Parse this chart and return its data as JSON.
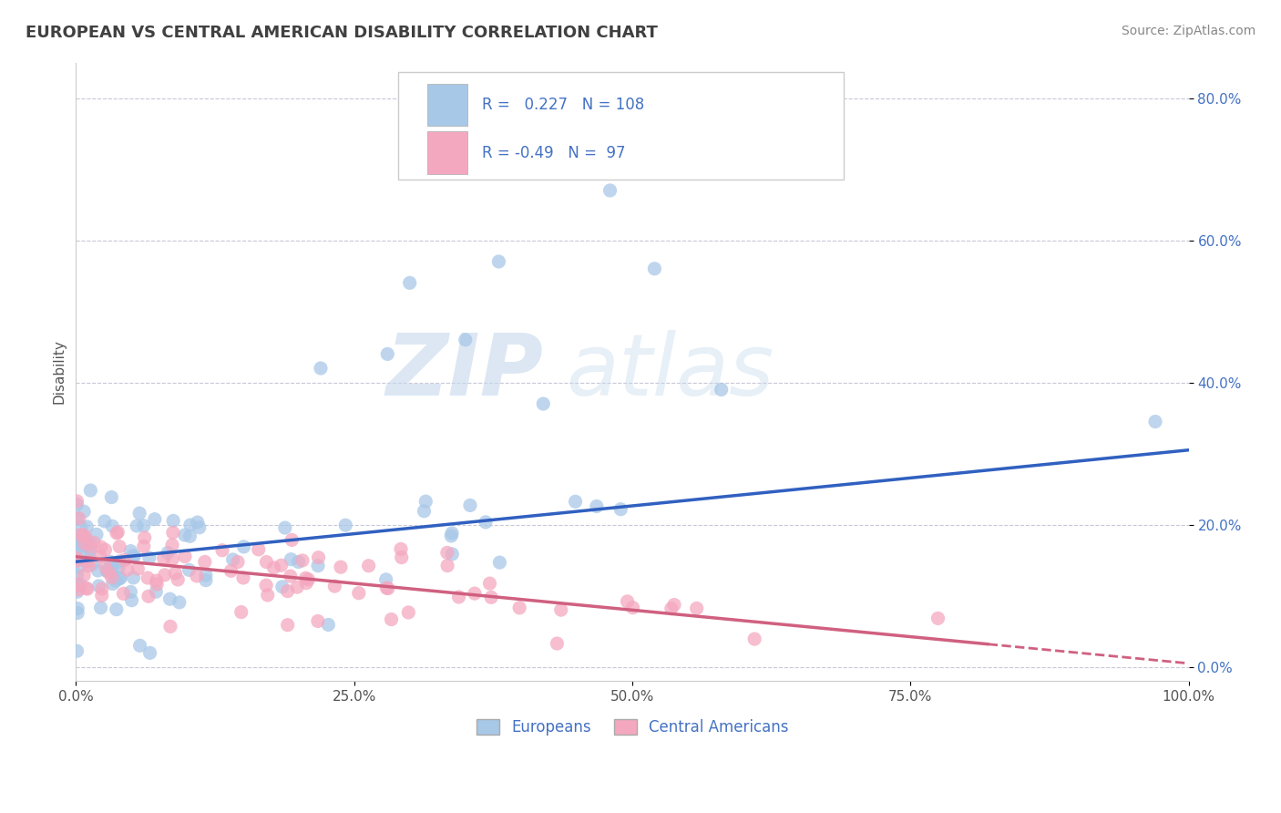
{
  "title": "EUROPEAN VS CENTRAL AMERICAN DISABILITY CORRELATION CHART",
  "source": "Source: ZipAtlas.com",
  "ylabel": "Disability",
  "xlim": [
    0.0,
    1.0
  ],
  "ylim": [
    -0.02,
    0.85
  ],
  "x_ticks": [
    0.0,
    0.25,
    0.5,
    0.75,
    1.0
  ],
  "x_tick_labels": [
    "0.0%",
    "25.0%",
    "50.0%",
    "75.0%",
    "100.0%"
  ],
  "y_ticks": [
    0.0,
    0.2,
    0.4,
    0.6,
    0.8
  ],
  "y_tick_labels": [
    "0.0%",
    "20.0%",
    "40.0%",
    "60.0%",
    "80.0%"
  ],
  "european_color": "#a8c8e8",
  "central_american_color": "#f4a8c0",
  "european_line_color": "#3060c0",
  "central_american_line_color": "#d06080",
  "R_european": 0.227,
  "N_european": 108,
  "R_central": -0.49,
  "N_central": 97,
  "watermark_zip": "ZIP",
  "watermark_atlas": "atlas",
  "background_color": "#ffffff",
  "grid_color": "#c8c8d8",
  "legend_text_color": "#4472c4",
  "title_color": "#404040",
  "source_color": "#888888",
  "legend_european_label": "Europeans",
  "legend_central_label": "Central Americans",
  "eu_line_x0": 0.0,
  "eu_line_y0": 0.148,
  "eu_line_x1": 1.0,
  "eu_line_y1": 0.305,
  "ca_line_x0": 0.0,
  "ca_line_y0": 0.155,
  "ca_line_x1": 1.0,
  "ca_line_y1": 0.005
}
